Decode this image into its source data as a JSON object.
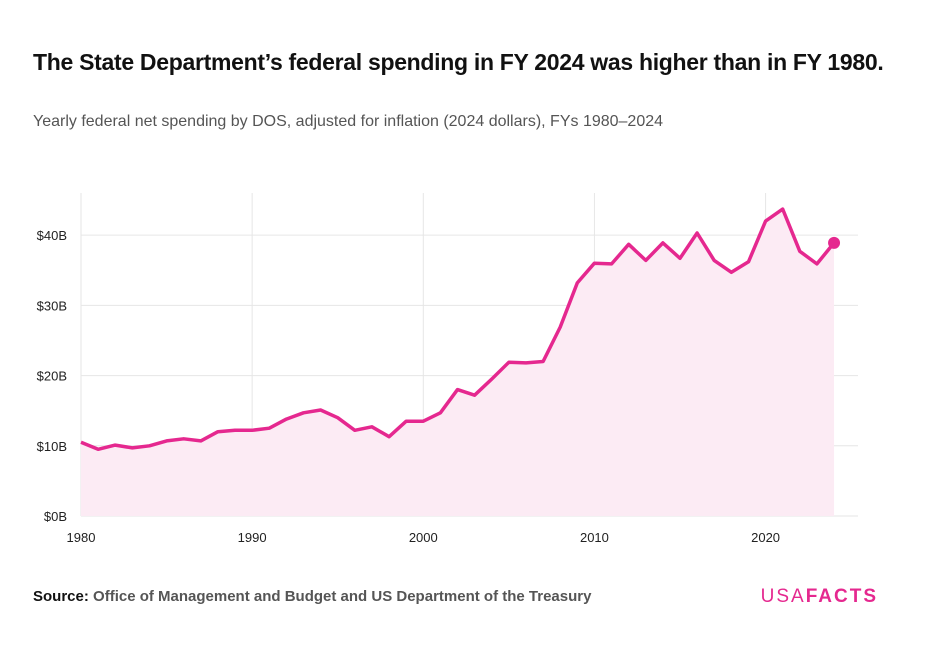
{
  "title": "The State Department’s federal spending in FY 2024 was higher than in FY 1980.",
  "subtitle": "Yearly federal net spending by DOS, adjusted for inflation (2024 dollars), FYs 1980–2024",
  "source_label": "Source:",
  "source_text": "Office of Management and Budget and US Department of the Treasury",
  "logo": {
    "part1": "USA",
    "part2": "FACTS"
  },
  "colors": {
    "line": "#e5288f",
    "area": "#fcebf4",
    "grid": "#e6e6e6"
  },
  "chart_data": {
    "type": "area",
    "title": "The State Department’s federal spending in FY 2024 was higher than in FY 1980.",
    "xlabel": "",
    "ylabel": "",
    "xlim": [
      1980,
      2025.4
    ],
    "ylim": [
      0,
      46
    ],
    "grid": true,
    "x_ticks": [
      1980,
      1990,
      2000,
      2010,
      2020
    ],
    "y_ticks": [
      0,
      10,
      20,
      30,
      40
    ],
    "y_tick_labels": [
      "$0B",
      "$10B",
      "$20B",
      "$30B",
      "$40B"
    ],
    "units": "billions of 2024 dollars",
    "x": [
      1980,
      1981,
      1982,
      1983,
      1984,
      1985,
      1986,
      1987,
      1988,
      1989,
      1990,
      1991,
      1992,
      1993,
      1994,
      1995,
      1996,
      1997,
      1998,
      1999,
      2000,
      2001,
      2002,
      2003,
      2004,
      2005,
      2006,
      2007,
      2008,
      2009,
      2010,
      2011,
      2012,
      2013,
      2014,
      2015,
      2016,
      2017,
      2018,
      2019,
      2020,
      2021,
      2022,
      2023,
      2024
    ],
    "values": [
      10.5,
      9.5,
      10.1,
      9.7,
      10.0,
      10.7,
      11.0,
      10.7,
      12.0,
      12.2,
      12.2,
      12.5,
      13.8,
      14.7,
      15.1,
      14.0,
      12.2,
      12.7,
      11.3,
      13.5,
      13.5,
      14.7,
      18.0,
      17.2,
      19.5,
      21.9,
      21.8,
      22.0,
      26.9,
      33.2,
      36.0,
      35.9,
      38.7,
      36.4,
      38.9,
      36.7,
      40.3,
      36.4,
      34.7,
      36.2,
      42.0,
      43.7,
      37.7,
      35.9,
      38.9
    ],
    "highlight_last_point": true
  }
}
